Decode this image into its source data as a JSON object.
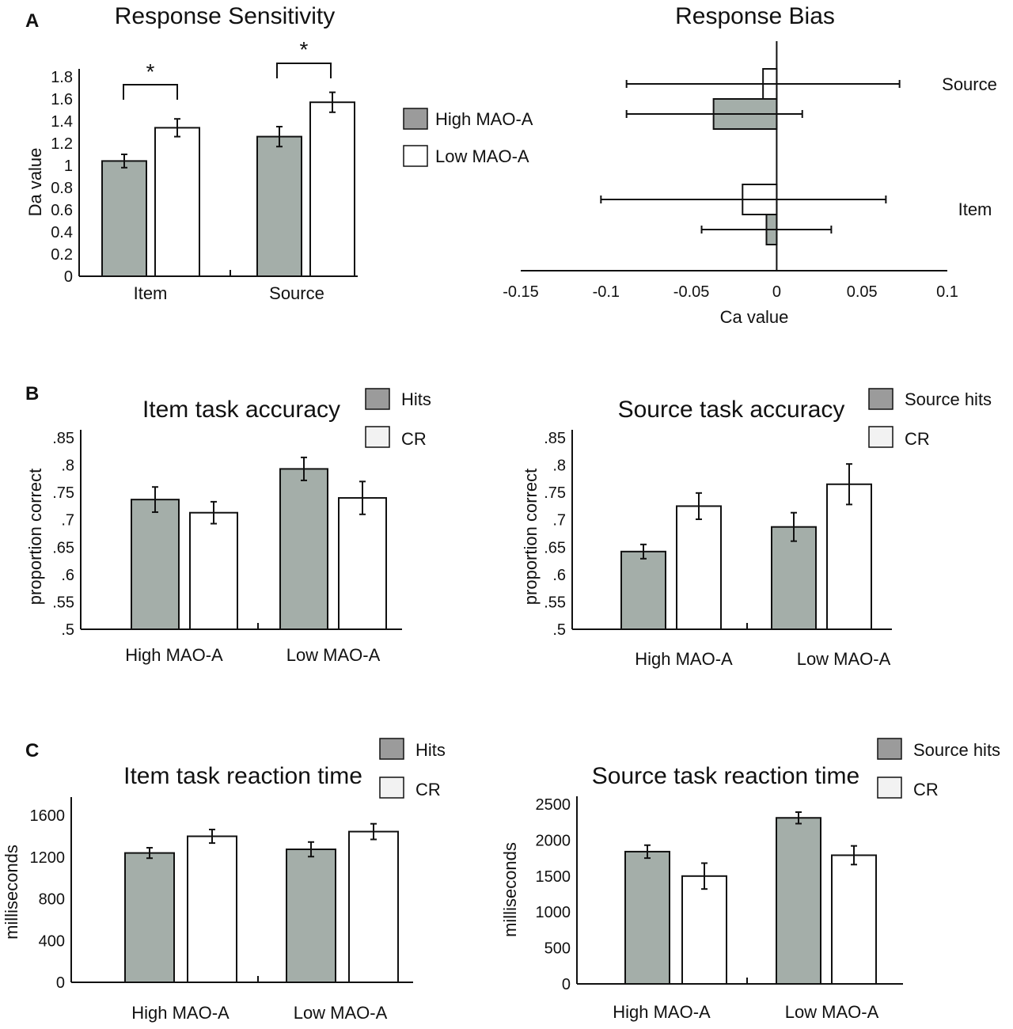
{
  "panel_letters": [
    "A",
    "B",
    "C"
  ],
  "colors": {
    "gray": "#a4aea9",
    "white": "#ffffff",
    "stroke": "#111111"
  },
  "legends": {
    "mao": [
      "High MAO-A",
      "Low MAO-A"
    ],
    "item": [
      "Hits",
      "CR"
    ],
    "source": [
      "Source hits",
      "CR"
    ]
  },
  "chart_data": [
    {
      "id": "sensitivity",
      "type": "bar",
      "title": "Response Sensitivity",
      "ylabel": "Da value",
      "xlabel": "",
      "categories": [
        "Item",
        "Source"
      ],
      "yticks": [
        "0",
        "0.2",
        "0.4",
        "0.6",
        "0.8",
        "1",
        "1.2",
        "1.4",
        "1.6",
        "1.8"
      ],
      "ylim": [
        0,
        1.8
      ],
      "series": [
        {
          "name": "High MAO-A",
          "values": [
            1.04,
            1.26
          ],
          "errors": [
            0.06,
            0.09
          ]
        },
        {
          "name": "Low MAO-A",
          "values": [
            1.34,
            1.57
          ],
          "errors": [
            0.08,
            0.09
          ]
        }
      ],
      "annotations": [
        "*",
        "*"
      ]
    },
    {
      "id": "bias",
      "type": "bar",
      "orientation": "horizontal",
      "title": "Response Bias",
      "xlabel": "Ca value",
      "categories": [
        "Source",
        "Item"
      ],
      "xticks": [
        "-0.15",
        "-0.1",
        "-0.05",
        "0",
        "0.05",
        "0.1"
      ],
      "xlim": [
        -0.15,
        0.1
      ],
      "series": [
        {
          "name": "Low MAO-A",
          "values": [
            -0.008,
            -0.02
          ],
          "lo": [
            -0.088,
            -0.103
          ],
          "hi": [
            0.072,
            0.064
          ]
        },
        {
          "name": "High MAO-A",
          "values": [
            -0.037,
            -0.006
          ],
          "lo": [
            -0.088,
            -0.044
          ],
          "hi": [
            0.015,
            0.032
          ]
        }
      ]
    },
    {
      "id": "item_acc",
      "type": "bar",
      "title": "Item task accuracy",
      "ylabel": "proportion correct",
      "categories": [
        "High MAO-A",
        "Low MAO-A"
      ],
      "yticks": [
        ".5",
        ".55",
        ".6",
        ".65",
        ".7",
        ".75",
        ".8",
        ".85"
      ],
      "ylim": [
        0.5,
        0.85
      ],
      "series": [
        {
          "name": "Hits",
          "values": [
            0.737,
            0.793
          ],
          "errors": [
            0.023,
            0.021
          ]
        },
        {
          "name": "CR",
          "values": [
            0.713,
            0.74
          ],
          "errors": [
            0.02,
            0.03
          ]
        }
      ]
    },
    {
      "id": "source_acc",
      "type": "bar",
      "title": "Source task accuracy",
      "ylabel": "proportion correct",
      "categories": [
        "High MAO-A",
        "Low MAO-A"
      ],
      "yticks": [
        ".5",
        ".55",
        ".6",
        ".65",
        ".7",
        ".75",
        ".8",
        ".85"
      ],
      "ylim": [
        0.5,
        0.85
      ],
      "series": [
        {
          "name": "Source hits",
          "values": [
            0.642,
            0.687
          ],
          "errors": [
            0.013,
            0.026
          ]
        },
        {
          "name": "CR",
          "values": [
            0.725,
            0.765
          ],
          "errors": [
            0.024,
            0.037
          ]
        }
      ]
    },
    {
      "id": "item_rt",
      "type": "bar",
      "title": "Item task reaction time",
      "ylabel": "milliseconds",
      "categories": [
        "High MAO-A",
        "Low MAO-A"
      ],
      "yticks": [
        "0",
        "400",
        "800",
        "1200",
        "1600"
      ],
      "ylim": [
        0,
        1700
      ],
      "series": [
        {
          "name": "Hits",
          "values": [
            1240,
            1275
          ],
          "errors": [
            50,
            70
          ]
        },
        {
          "name": "CR",
          "values": [
            1400,
            1445
          ],
          "errors": [
            65,
            75
          ]
        }
      ]
    },
    {
      "id": "source_rt",
      "type": "bar",
      "title": "Source task reaction time",
      "ylabel": "milliseconds",
      "categories": [
        "High MAO-A",
        "Low MAO-A"
      ],
      "yticks": [
        "0",
        "500",
        "1000",
        "1500",
        "2000",
        "2500"
      ],
      "ylim": [
        0,
        2500
      ],
      "series": [
        {
          "name": "Source hits",
          "values": [
            1840,
            2310
          ],
          "errors": [
            90,
            80
          ]
        },
        {
          "name": "CR",
          "values": [
            1500,
            1790
          ],
          "errors": [
            180,
            130
          ]
        }
      ]
    }
  ]
}
